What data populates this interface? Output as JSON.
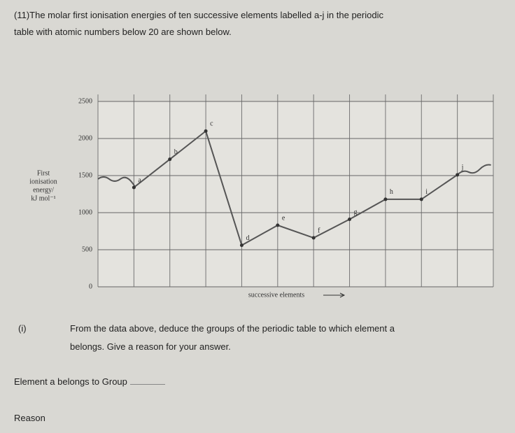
{
  "header": {
    "lines": [
      "(11)The molar first ionisation energies of ten successive elements labelled a-j in the periodic",
      "table with atomic numbers below 20 are shown below."
    ]
  },
  "chart_data": {
    "type": "line",
    "y_label": [
      "First",
      "ionisation",
      "energy/",
      "kJ mol⁻¹"
    ],
    "x_label": "successive elements",
    "categories": [
      "a",
      "b",
      "c",
      "d",
      "e",
      "f",
      "g",
      "h",
      "i",
      "j"
    ],
    "values": [
      1340,
      1720,
      2100,
      560,
      830,
      660,
      910,
      1180,
      1180,
      1510
    ],
    "color": "#555555",
    "ylim": [
      0,
      2500
    ],
    "yticks": [
      0,
      500,
      1000,
      1500,
      2000,
      2500
    ],
    "grid": true
  },
  "question": {
    "number": "(i)",
    "lines": [
      "From the data above, deduce the groups of the periodic table to which element a",
      "belongs. Give a reason for your answer."
    ]
  },
  "answer": {
    "group": "Element a belongs to Group",
    "reason": "Reason"
  }
}
